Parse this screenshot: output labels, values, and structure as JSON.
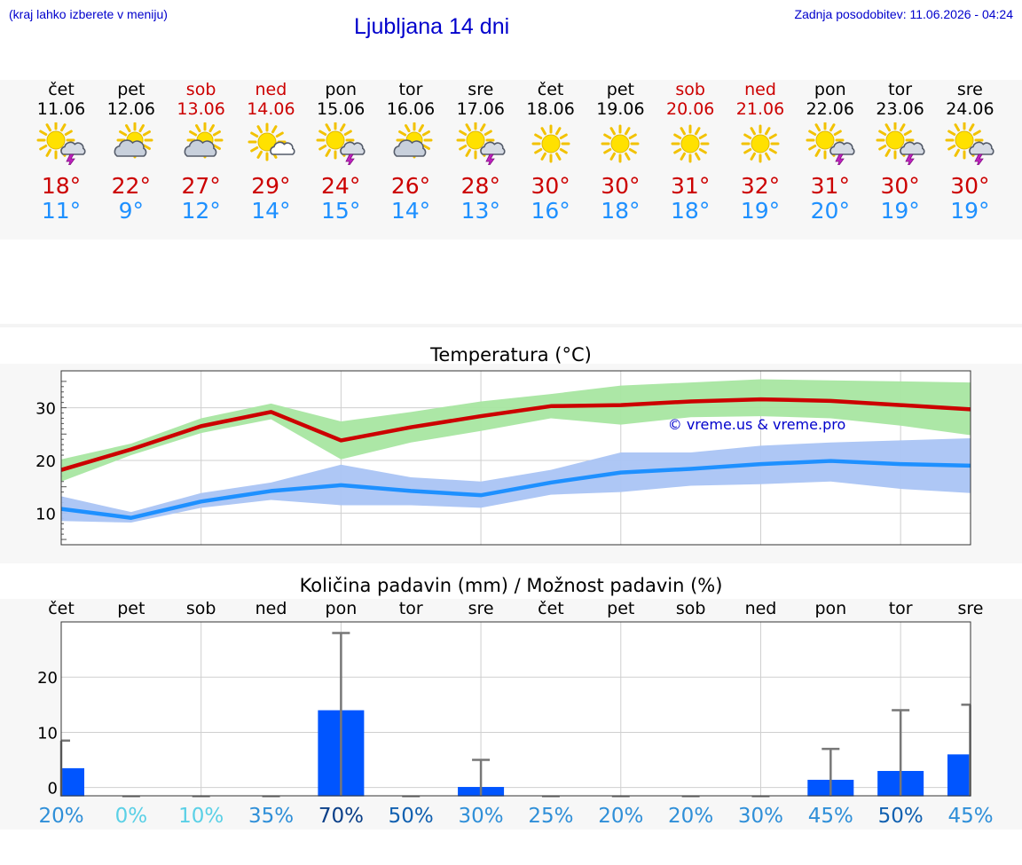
{
  "header": {
    "left_note": "(kraj lahko izberete v meniju)",
    "title": "Ljubljana 14 dni",
    "right_note": "Zadnja posodobitev: 11.06.2026 - 04:24"
  },
  "colors": {
    "max_temp": "#cc0000",
    "min_temp": "#1e90ff",
    "weekend": "#cc0000",
    "max_band": "#a8e6a1",
    "min_band": "#aac4f4",
    "bar": "#0055ff",
    "link": "#0000cc"
  },
  "forecast": [
    {
      "weekday": "čet",
      "date": "11.06",
      "weekend": false,
      "icon": "sun-cloud-lightning-icon",
      "tmax": "18°",
      "tmin": "11°"
    },
    {
      "weekday": "pet",
      "date": "12.06",
      "weekend": false,
      "icon": "sun-cloud-icon",
      "tmax": "22°",
      "tmin": "9°"
    },
    {
      "weekday": "sob",
      "date": "13.06",
      "weekend": true,
      "icon": "sun-cloud-icon",
      "tmax": "27°",
      "tmin": "12°"
    },
    {
      "weekday": "ned",
      "date": "14.06",
      "weekend": true,
      "icon": "sun-small-cloud-icon",
      "tmax": "29°",
      "tmin": "14°"
    },
    {
      "weekday": "pon",
      "date": "15.06",
      "weekend": false,
      "icon": "sun-cloud-lightning-icon",
      "tmax": "24°",
      "tmin": "15°"
    },
    {
      "weekday": "tor",
      "date": "16.06",
      "weekend": false,
      "icon": "sun-cloud-icon",
      "tmax": "26°",
      "tmin": "14°"
    },
    {
      "weekday": "sre",
      "date": "17.06",
      "weekend": false,
      "icon": "sun-cloud-lightning-icon",
      "tmax": "28°",
      "tmin": "13°"
    },
    {
      "weekday": "čet",
      "date": "18.06",
      "weekend": false,
      "icon": "sun-icon",
      "tmax": "30°",
      "tmin": "16°"
    },
    {
      "weekday": "pet",
      "date": "19.06",
      "weekend": false,
      "icon": "sun-icon",
      "tmax": "30°",
      "tmin": "18°"
    },
    {
      "weekday": "sob",
      "date": "20.06",
      "weekend": true,
      "icon": "sun-icon",
      "tmax": "31°",
      "tmin": "18°"
    },
    {
      "weekday": "ned",
      "date": "21.06",
      "weekend": true,
      "icon": "sun-icon",
      "tmax": "32°",
      "tmin": "19°"
    },
    {
      "weekday": "pon",
      "date": "22.06",
      "weekend": false,
      "icon": "sun-cloud-lightning-icon",
      "tmax": "31°",
      "tmin": "20°"
    },
    {
      "weekday": "tor",
      "date": "23.06",
      "weekend": false,
      "icon": "sun-cloud-lightning-icon",
      "tmax": "30°",
      "tmin": "19°"
    },
    {
      "weekday": "sre",
      "date": "24.06",
      "weekend": false,
      "icon": "sun-cloud-lightning-icon",
      "tmax": "30°",
      "tmin": "19°"
    }
  ],
  "chart_data": [
    {
      "type": "line",
      "title": "Temperatura (°C)",
      "ylim": [
        4,
        37
      ],
      "yticks": [
        10,
        20,
        30
      ],
      "grid": true,
      "watermark": "© vreme.us & vreme.pro",
      "series": [
        {
          "values": [
            18.2,
            22.1,
            26.5,
            29.2,
            23.8,
            26.3,
            28.4,
            30.3,
            30.5,
            31.2,
            31.6,
            31.3,
            30.5,
            29.7
          ],
          "band_low": [
            16,
            21,
            25.2,
            27.8,
            20.2,
            23.4,
            25.6,
            28,
            26.8,
            28.2,
            28.4,
            28,
            26.6,
            24.8
          ],
          "band_high": [
            20.2,
            23.2,
            28,
            30.8,
            27.4,
            29.2,
            31.2,
            32.6,
            34.2,
            34.8,
            35.4,
            35.2,
            35,
            34.8
          ]
        },
        {
          "values": [
            10.8,
            9.1,
            12.2,
            14.2,
            15.3,
            14.2,
            13.4,
            15.8,
            17.7,
            18.4,
            19.3,
            19.9,
            19.3,
            19.0
          ],
          "band_low": [
            8.5,
            8.2,
            11,
            12.5,
            11.5,
            11.5,
            11,
            13.5,
            14,
            15.2,
            15.5,
            16,
            14.6,
            13.8
          ],
          "band_high": [
            13.2,
            10.2,
            13.8,
            15.8,
            19.2,
            16.8,
            16,
            18.2,
            21.5,
            21.5,
            22.8,
            23.4,
            23.8,
            24.2
          ]
        }
      ]
    },
    {
      "type": "bar",
      "title": "Količina padavin (mm) / Možnost padavin (%)",
      "categories": [
        "čet",
        "pet",
        "sob",
        "ned",
        "pon",
        "tor",
        "sre",
        "čet",
        "pet",
        "sob",
        "ned",
        "pon",
        "tor",
        "sre"
      ],
      "ylim": [
        -1.5,
        30
      ],
      "yticks": [
        0,
        10,
        20
      ],
      "grid": true,
      "values": [
        3.5,
        0,
        0,
        0,
        14,
        0,
        0.1,
        0,
        0,
        0,
        0,
        1.4,
        3.0,
        6.0
      ],
      "max": [
        8.5,
        0,
        0,
        0,
        28,
        0,
        5,
        0,
        0,
        0,
        0,
        7,
        14,
        15
      ],
      "probability": [
        "20%",
        "0%",
        "10%",
        "35%",
        "70%",
        "50%",
        "30%",
        "25%",
        "20%",
        "20%",
        "30%",
        "45%",
        "50%",
        "45%"
      ],
      "probability_levels": [
        0.2,
        0,
        0.1,
        0.35,
        0.7,
        0.5,
        0.3,
        0.25,
        0.2,
        0.2,
        0.3,
        0.45,
        0.5,
        0.45
      ]
    }
  ]
}
